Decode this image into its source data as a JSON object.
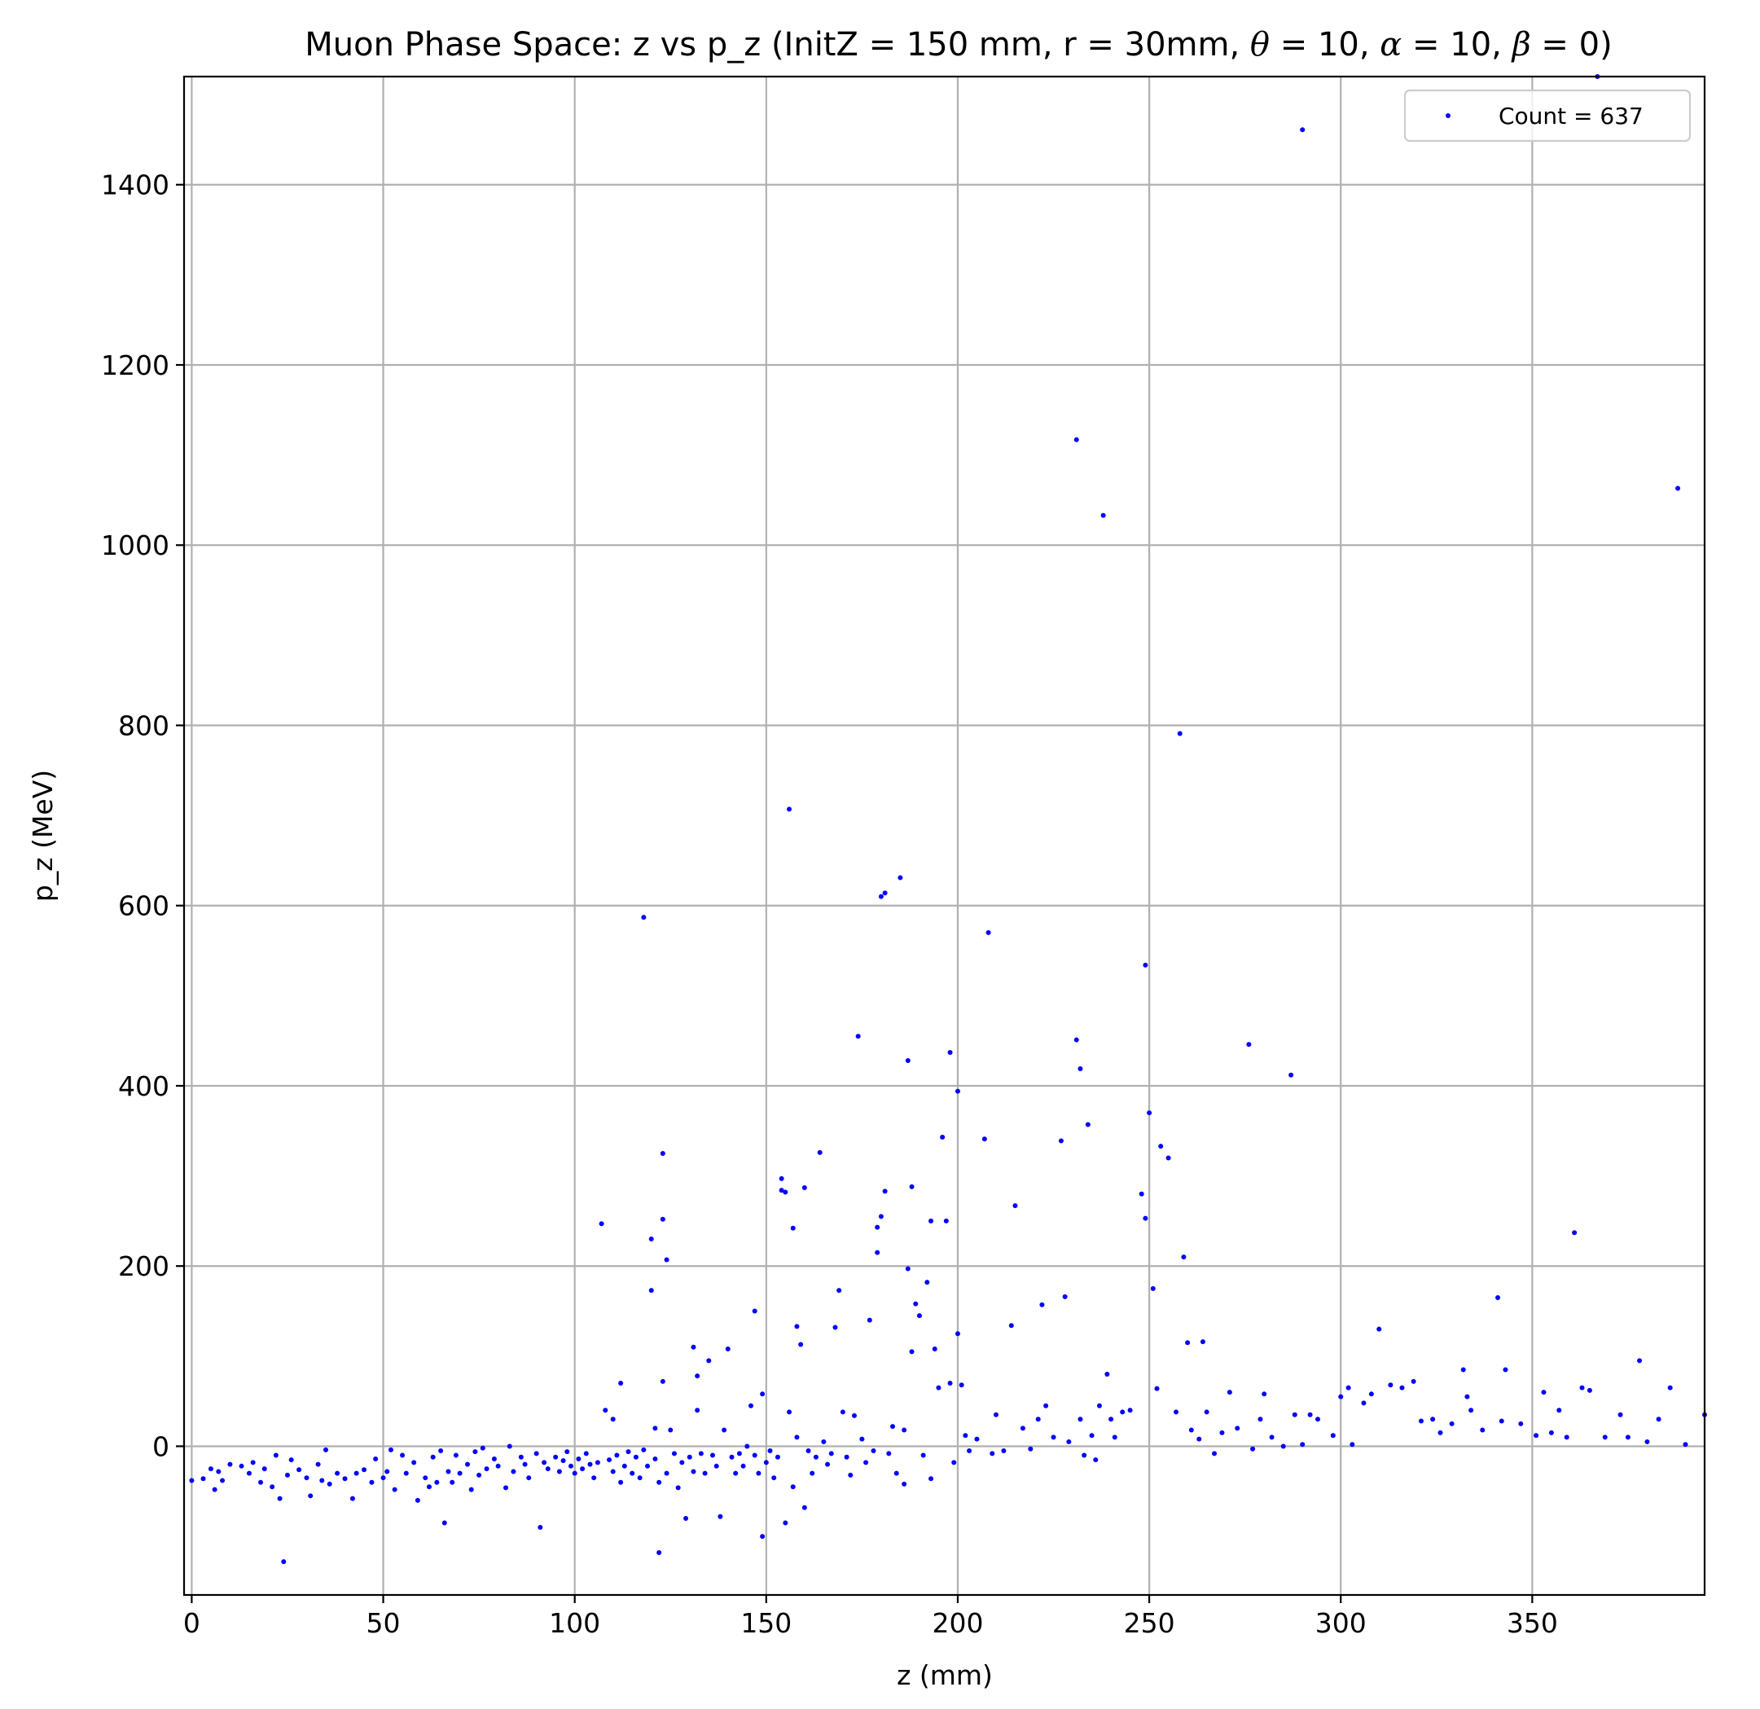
{
  "chart_data": {
    "type": "scatter",
    "title_prefix": "Muon Phase Space: z vs p_z (InitZ = 150 mm, r = 30mm, ",
    "title_math": [
      {
        "sym": "θ",
        "rest": " = 10, "
      },
      {
        "sym": "α",
        "rest": " = 10, "
      },
      {
        "sym": "β",
        "rest": " = 0)"
      }
    ],
    "xlabel": "z (mm)",
    "ylabel": "p_z (MeV)",
    "xlim": [
      -2,
      395
    ],
    "ylim": [
      -165,
      1520
    ],
    "xticks": [
      0,
      50,
      100,
      150,
      200,
      250,
      300,
      350
    ],
    "yticks": [
      0,
      200,
      400,
      600,
      800,
      1000,
      1200,
      1400
    ],
    "grid": true,
    "legend": {
      "label": "Count = 637",
      "placement": "upper right"
    },
    "marker_color": "#0000ff",
    "series": [
      {
        "name": "Count = 637",
        "points": [
          [
            0,
            -38
          ],
          [
            3,
            -36
          ],
          [
            5,
            -25
          ],
          [
            6,
            -48
          ],
          [
            7,
            -28
          ],
          [
            8,
            -38
          ],
          [
            10,
            -20
          ],
          [
            13,
            -22
          ],
          [
            15,
            -30
          ],
          [
            16,
            -18
          ],
          [
            18,
            -40
          ],
          [
            19,
            -25
          ],
          [
            21,
            -45
          ],
          [
            22,
            -10
          ],
          [
            23,
            -58
          ],
          [
            24,
            -128
          ],
          [
            25,
            -32
          ],
          [
            26,
            -15
          ],
          [
            28,
            -26
          ],
          [
            30,
            -35
          ],
          [
            31,
            -55
          ],
          [
            33,
            -20
          ],
          [
            34,
            -38
          ],
          [
            35,
            -4
          ],
          [
            36,
            -42
          ],
          [
            38,
            -30
          ],
          [
            40,
            -36
          ],
          [
            42,
            -58
          ],
          [
            43,
            -30
          ],
          [
            45,
            -26
          ],
          [
            47,
            -40
          ],
          [
            48,
            -14
          ],
          [
            50,
            -35
          ],
          [
            51,
            -28
          ],
          [
            52,
            -4
          ],
          [
            53,
            -48
          ],
          [
            55,
            -10
          ],
          [
            56,
            -30
          ],
          [
            58,
            -18
          ],
          [
            59,
            -60
          ],
          [
            61,
            -35
          ],
          [
            62,
            -45
          ],
          [
            63,
            -12
          ],
          [
            64,
            -40
          ],
          [
            65,
            -5
          ],
          [
            66,
            -85
          ],
          [
            67,
            -28
          ],
          [
            68,
            -40
          ],
          [
            69,
            -10
          ],
          [
            70,
            -30
          ],
          [
            72,
            -20
          ],
          [
            73,
            -48
          ],
          [
            74,
            -6
          ],
          [
            75,
            -32
          ],
          [
            76,
            -2
          ],
          [
            77,
            -25
          ],
          [
            79,
            -14
          ],
          [
            80,
            -22
          ],
          [
            82,
            -46
          ],
          [
            83,
            0
          ],
          [
            84,
            -28
          ],
          [
            86,
            -12
          ],
          [
            87,
            -20
          ],
          [
            88,
            -35
          ],
          [
            90,
            -8
          ],
          [
            91,
            -90
          ],
          [
            92,
            -18
          ],
          [
            93,
            -25
          ],
          [
            95,
            -12
          ],
          [
            96,
            -28
          ],
          [
            97,
            -16
          ],
          [
            98,
            -6
          ],
          [
            99,
            -22
          ],
          [
            100,
            -30
          ],
          [
            101,
            -14
          ],
          [
            102,
            -25
          ],
          [
            103,
            -8
          ],
          [
            104,
            -20
          ],
          [
            105,
            -35
          ],
          [
            106,
            -18
          ],
          [
            107,
            247
          ],
          [
            108,
            40
          ],
          [
            109,
            -15
          ],
          [
            110,
            30
          ],
          [
            110,
            -28
          ],
          [
            111,
            -10
          ],
          [
            112,
            -40
          ],
          [
            112,
            70
          ],
          [
            113,
            -22
          ],
          [
            114,
            -6
          ],
          [
            115,
            -30
          ],
          [
            116,
            -12
          ],
          [
            117,
            -35
          ],
          [
            118,
            587
          ],
          [
            118,
            -4
          ],
          [
            119,
            -22
          ],
          [
            120,
            230
          ],
          [
            120,
            173
          ],
          [
            121,
            -14
          ],
          [
            121,
            20
          ],
          [
            122,
            -40
          ],
          [
            122,
            -118
          ],
          [
            123,
            325
          ],
          [
            123,
            252
          ],
          [
            123,
            72
          ],
          [
            124,
            207
          ],
          [
            124,
            -30
          ],
          [
            125,
            18
          ],
          [
            126,
            -8
          ],
          [
            127,
            -46
          ],
          [
            128,
            -18
          ],
          [
            129,
            -80
          ],
          [
            130,
            -12
          ],
          [
            131,
            110
          ],
          [
            131,
            -28
          ],
          [
            132,
            78
          ],
          [
            132,
            40
          ],
          [
            133,
            -8
          ],
          [
            134,
            -30
          ],
          [
            135,
            95
          ],
          [
            136,
            -10
          ],
          [
            137,
            -22
          ],
          [
            138,
            -78
          ],
          [
            139,
            18
          ],
          [
            140,
            108
          ],
          [
            141,
            -12
          ],
          [
            142,
            -30
          ],
          [
            143,
            -8
          ],
          [
            144,
            -22
          ],
          [
            145,
            0
          ],
          [
            146,
            45
          ],
          [
            147,
            150
          ],
          [
            147,
            -10
          ],
          [
            148,
            -30
          ],
          [
            149,
            -100
          ],
          [
            149,
            58
          ],
          [
            150,
            -18
          ],
          [
            151,
            -5
          ],
          [
            152,
            -35
          ],
          [
            153,
            -12
          ],
          [
            154,
            297
          ],
          [
            154,
            284
          ],
          [
            155,
            282
          ],
          [
            155,
            -85
          ],
          [
            156,
            707
          ],
          [
            156,
            38
          ],
          [
            157,
            242
          ],
          [
            157,
            -45
          ],
          [
            158,
            133
          ],
          [
            158,
            10
          ],
          [
            159,
            113
          ],
          [
            160,
            287
          ],
          [
            160,
            -68
          ],
          [
            161,
            -5
          ],
          [
            162,
            -30
          ],
          [
            163,
            -12
          ],
          [
            164,
            326
          ],
          [
            165,
            5
          ],
          [
            166,
            -20
          ],
          [
            167,
            -8
          ],
          [
            168,
            132
          ],
          [
            169,
            173
          ],
          [
            170,
            38
          ],
          [
            171,
            -12
          ],
          [
            172,
            -32
          ],
          [
            173,
            34
          ],
          [
            174,
            455
          ],
          [
            175,
            8
          ],
          [
            176,
            -18
          ],
          [
            177,
            140
          ],
          [
            178,
            -5
          ],
          [
            179,
            243
          ],
          [
            179,
            215
          ],
          [
            180,
            610
          ],
          [
            180,
            255
          ],
          [
            181,
            614
          ],
          [
            181,
            283
          ],
          [
            182,
            -8
          ],
          [
            183,
            22
          ],
          [
            184,
            -30
          ],
          [
            185,
            631
          ],
          [
            186,
            18
          ],
          [
            186,
            -42
          ],
          [
            187,
            428
          ],
          [
            187,
            197
          ],
          [
            188,
            288
          ],
          [
            188,
            105
          ],
          [
            189,
            158
          ],
          [
            190,
            145
          ],
          [
            191,
            -10
          ],
          [
            192,
            182
          ],
          [
            193,
            250
          ],
          [
            193,
            -36
          ],
          [
            194,
            108
          ],
          [
            195,
            65
          ],
          [
            196,
            343
          ],
          [
            197,
            250
          ],
          [
            198,
            437
          ],
          [
            198,
            70
          ],
          [
            199,
            -18
          ],
          [
            200,
            394
          ],
          [
            200,
            125
          ],
          [
            201,
            68
          ],
          [
            202,
            12
          ],
          [
            203,
            -5
          ],
          [
            205,
            8
          ],
          [
            207,
            341
          ],
          [
            208,
            570
          ],
          [
            209,
            -8
          ],
          [
            210,
            35
          ],
          [
            212,
            -5
          ],
          [
            214,
            134
          ],
          [
            215,
            267
          ],
          [
            217,
            20
          ],
          [
            219,
            -3
          ],
          [
            221,
            30
          ],
          [
            222,
            157
          ],
          [
            223,
            45
          ],
          [
            225,
            10
          ],
          [
            227,
            339
          ],
          [
            228,
            166
          ],
          [
            229,
            5
          ],
          [
            231,
            1117
          ],
          [
            231,
            451
          ],
          [
            232,
            419
          ],
          [
            232,
            30
          ],
          [
            233,
            -10
          ],
          [
            234,
            357
          ],
          [
            235,
            12
          ],
          [
            236,
            -15
          ],
          [
            237,
            45
          ],
          [
            238,
            1033
          ],
          [
            239,
            80
          ],
          [
            240,
            30
          ],
          [
            241,
            10
          ],
          [
            243,
            38
          ],
          [
            245,
            40
          ],
          [
            248,
            280
          ],
          [
            249,
            253
          ],
          [
            249,
            534
          ],
          [
            250,
            370
          ],
          [
            251,
            175
          ],
          [
            252,
            64
          ],
          [
            253,
            333
          ],
          [
            255,
            320
          ],
          [
            257,
            38
          ],
          [
            258,
            791
          ],
          [
            259,
            210
          ],
          [
            260,
            115
          ],
          [
            261,
            18
          ],
          [
            263,
            8
          ],
          [
            264,
            116
          ],
          [
            265,
            38
          ],
          [
            267,
            -8
          ],
          [
            269,
            15
          ],
          [
            271,
            60
          ],
          [
            273,
            20
          ],
          [
            276,
            446
          ],
          [
            277,
            -3
          ],
          [
            279,
            30
          ],
          [
            280,
            58
          ],
          [
            282,
            10
          ],
          [
            285,
            0
          ],
          [
            287,
            412
          ],
          [
            288,
            35
          ],
          [
            290,
            1461
          ],
          [
            290,
            2
          ],
          [
            292,
            35
          ],
          [
            294,
            30
          ],
          [
            298,
            12
          ],
          [
            300,
            55
          ],
          [
            302,
            65
          ],
          [
            303,
            2
          ],
          [
            306,
            48
          ],
          [
            308,
            58
          ],
          [
            310,
            130
          ],
          [
            313,
            68
          ],
          [
            316,
            65
          ],
          [
            319,
            72
          ],
          [
            321,
            28
          ],
          [
            324,
            30
          ],
          [
            326,
            15
          ],
          [
            329,
            25
          ],
          [
            332,
            85
          ],
          [
            333,
            55
          ],
          [
            334,
            40
          ],
          [
            337,
            18
          ],
          [
            341,
            165
          ],
          [
            342,
            28
          ],
          [
            343,
            85
          ],
          [
            347,
            25
          ],
          [
            351,
            12
          ],
          [
            353,
            60
          ],
          [
            355,
            15
          ],
          [
            357,
            40
          ],
          [
            359,
            10
          ],
          [
            361,
            237
          ],
          [
            363,
            65
          ],
          [
            365,
            62
          ],
          [
            367,
            1520
          ],
          [
            369,
            10
          ],
          [
            373,
            35
          ],
          [
            375,
            10
          ],
          [
            378,
            95
          ],
          [
            380,
            5
          ],
          [
            383,
            30
          ],
          [
            386,
            65
          ],
          [
            388,
            1063
          ],
          [
            390,
            2
          ],
          [
            395,
            35
          ]
        ]
      }
    ]
  }
}
